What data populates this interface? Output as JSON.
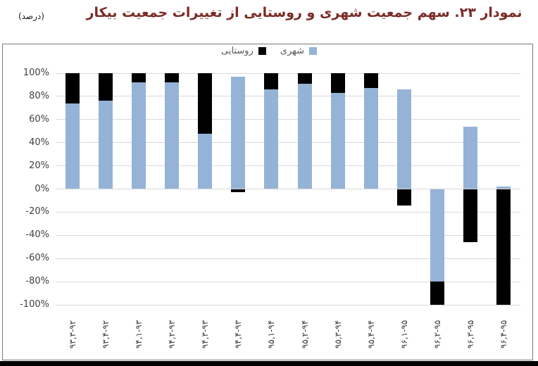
{
  "title": {
    "text": "نمودار ۲۳. سهم جمعیت شهری و روستایی از تغییرات جمعیت بیکار",
    "color": "#7b2b26"
  },
  "unit_note": "(درصد)",
  "legend": [
    {
      "label": "روستایی",
      "color": "#000000"
    },
    {
      "label": "شهری",
      "color": "#95b3d7"
    }
  ],
  "y_axis": {
    "ticks": [
      "100%",
      "80%",
      "60%",
      "40%",
      "20%",
      "0%",
      "-20%",
      "-40%",
      "-60%",
      "-80%",
      "-100%"
    ]
  },
  "chart_data": {
    "type": "bar",
    "stacked": true,
    "title": "نمودار ۲۳. سهم جمعیت شهری و روستایی از تغییرات جمعیت بیکار",
    "xlabel": "",
    "ylabel": "درصد",
    "ylim": [
      -100,
      100
    ],
    "ytick_step": 20,
    "grid": true,
    "legend_position": "top",
    "categories": [
      "۹۳,۳-۹۲",
      "۹۳,۴-۹۲",
      "۹۴,۱-۹۳",
      "۹۴,۲-۹۳",
      "۹۴,۳-۹۳",
      "۹۴,۴-۹۳",
      "۹۵,۱-۹۴",
      "۹۵,۲-۹۴",
      "۹۵,۳-۹۴",
      "۹۵,۴-۹۴",
      "۹۶,۱-۹۵",
      "۹۶,۲-۹۵",
      "۹۶,۳-۹۵",
      "۹۶,۴-۹۵"
    ],
    "series": [
      {
        "name": "شهری",
        "color": "#95b3d7",
        "values": [
          74,
          76,
          92,
          92,
          48,
          97,
          86,
          91,
          83,
          87,
          86,
          -80,
          54,
          2
        ]
      },
      {
        "name": "روستایی",
        "color": "#000000",
        "values": [
          26,
          24,
          8,
          8,
          52,
          -3,
          14,
          9,
          17,
          13,
          -14,
          -20,
          -46,
          -100
        ]
      }
    ],
    "colors": {
      "gridline": "#d9d9d9",
      "axis_text": "#3f3f3f"
    }
  }
}
